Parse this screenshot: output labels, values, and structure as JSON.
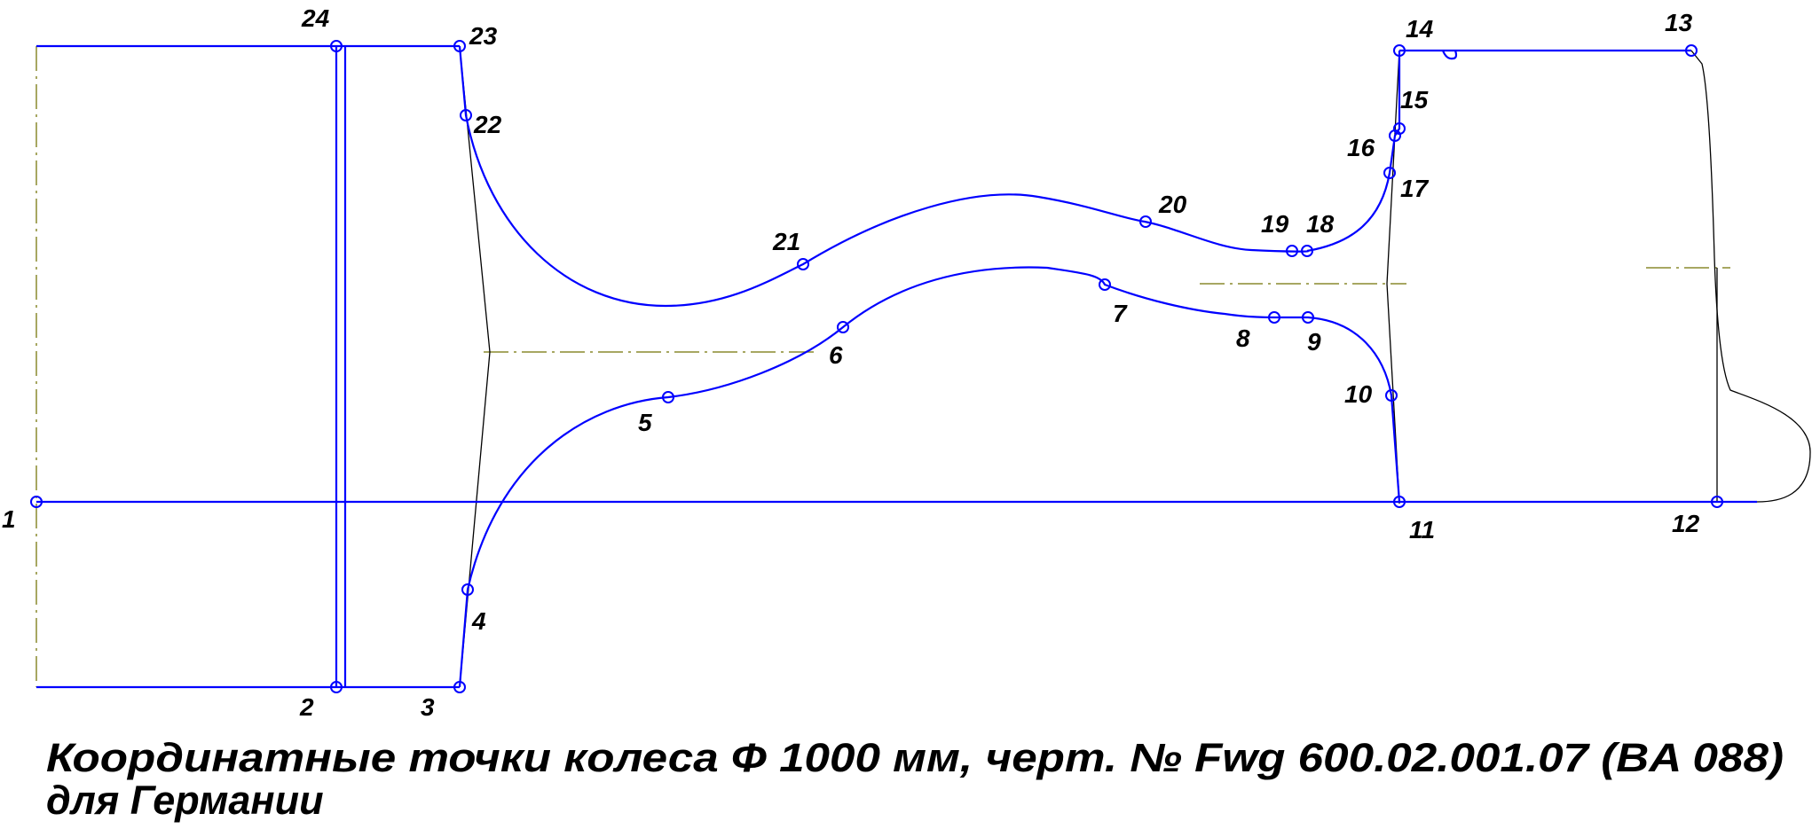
{
  "colors": {
    "profile": "#0000ff",
    "construction": "#000000",
    "centerline": "#8a8a2e",
    "text": "#000000"
  },
  "point_labels": [
    "1",
    "2",
    "3",
    "4",
    "5",
    "6",
    "7",
    "8",
    "9",
    "10",
    "11",
    "12",
    "13",
    "14",
    "15",
    "16",
    "17",
    "18",
    "19",
    "20",
    "21",
    "22",
    "23",
    "24"
  ],
  "caption": {
    "line1": "Координатные точки колеса Ф 1000 мм, черт. № Fwg 600.02.001.07 (BA 088)",
    "line2": "для Германии"
  }
}
